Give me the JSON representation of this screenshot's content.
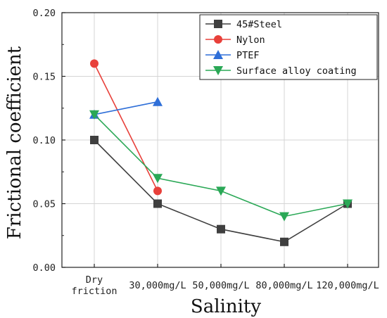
{
  "chart_data": {
    "type": "line",
    "xlabel": "Salinity",
    "ylabel": "Frictional coefficient",
    "categories": [
      [
        "Dry",
        "friction"
      ],
      [
        "30,000mg/L"
      ],
      [
        "50,000mg/L"
      ],
      [
        "80,000mg/L"
      ],
      [
        "120,000mg/L"
      ]
    ],
    "ylim": [
      0,
      0.2
    ],
    "yticks": [
      "0.00",
      "0.05",
      "0.10",
      "0.15",
      "0.20"
    ],
    "grid": true,
    "legend_position": "top-right",
    "series": [
      {
        "name": "45#Steel",
        "color": "#3f3f3f",
        "marker": "square",
        "values": [
          0.1,
          0.05,
          0.03,
          0.02,
          0.05
        ]
      },
      {
        "name": "Nylon",
        "color": "#e8403a",
        "marker": "circle",
        "values": [
          0.16,
          0.06,
          null,
          null,
          null
        ]
      },
      {
        "name": "PTEF",
        "color": "#2f6fd8",
        "marker": "triangle-up",
        "values": [
          0.12,
          0.13,
          null,
          null,
          null
        ]
      },
      {
        "name": "Surface alloy coating",
        "color": "#2aa856",
        "marker": "triangle-down",
        "values": [
          0.12,
          0.07,
          0.06,
          0.04,
          0.05
        ]
      }
    ]
  }
}
